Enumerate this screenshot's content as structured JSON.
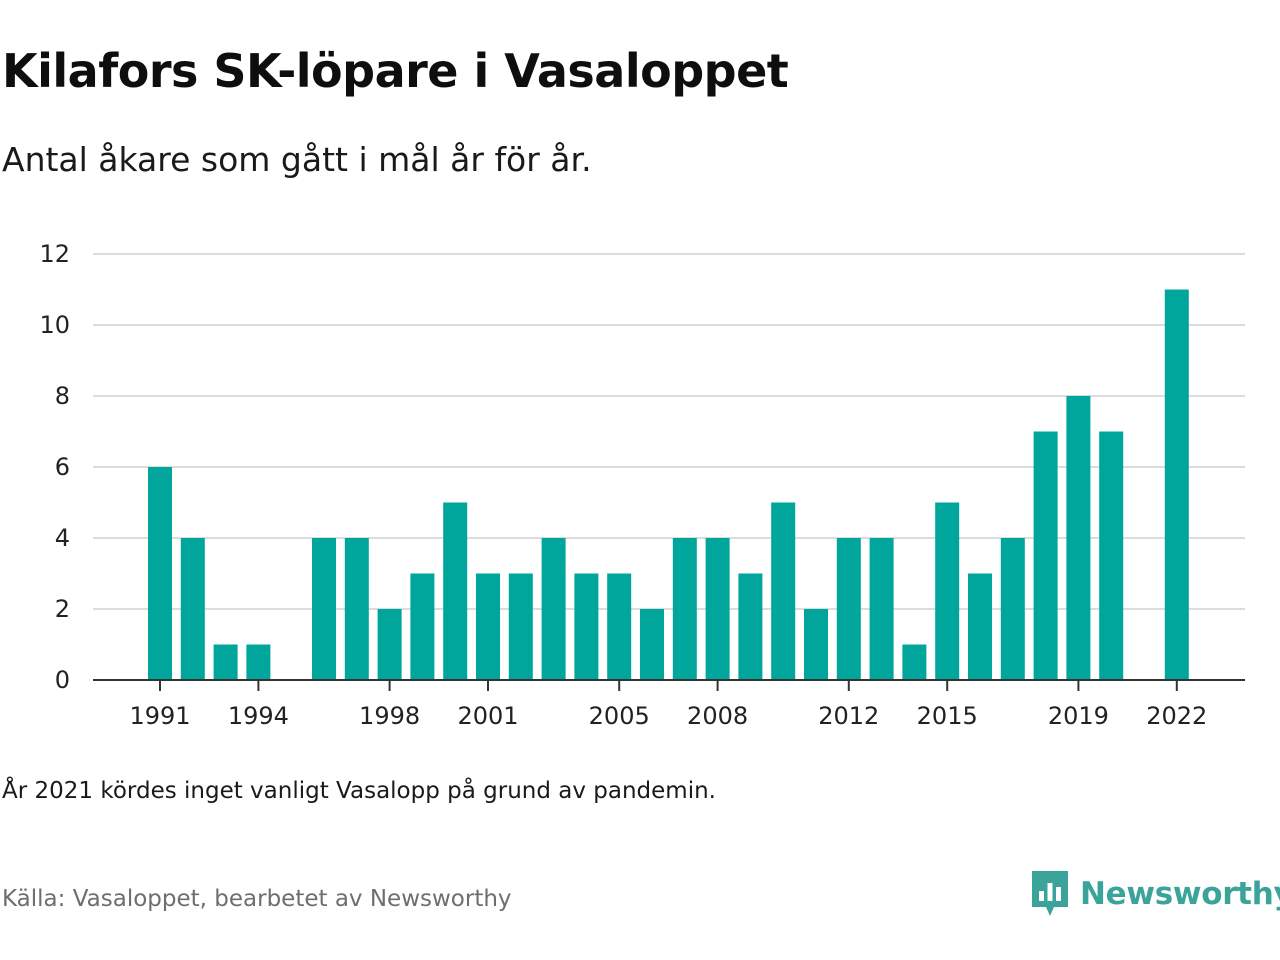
{
  "title": "Kilafors SK-löpare i Vasaloppet",
  "subtitle": "Antal åkare som gått i mål år för år.",
  "note": "År 2021 kördes inget vanligt Vasalopp på grund av pandemin.",
  "source": "Källa: Vasaloppet, bearbetet av Newsworthy",
  "brand": {
    "name": "Newsworthy",
    "icon": "newsworthy-logo-icon",
    "color": "#3aa39a"
  },
  "colors": {
    "bar": "#00a69c",
    "grid": "#dcdcdc",
    "axis": "#333333",
    "tick_text": "#222222"
  },
  "chart_data": {
    "type": "bar",
    "categories": [
      1991,
      1992,
      1993,
      1994,
      1995,
      1996,
      1997,
      1998,
      1999,
      2000,
      2001,
      2002,
      2003,
      2004,
      2005,
      2006,
      2007,
      2008,
      2009,
      2010,
      2011,
      2012,
      2013,
      2014,
      2015,
      2016,
      2017,
      2018,
      2019,
      2020,
      2021,
      2022
    ],
    "values": [
      6,
      4,
      1,
      1,
      null,
      4,
      4,
      2,
      3,
      5,
      3,
      3,
      4,
      3,
      3,
      2,
      4,
      4,
      3,
      5,
      2,
      4,
      4,
      1,
      5,
      3,
      4,
      7,
      8,
      7,
      null,
      11
    ],
    "x_tick_labels": [
      "1991",
      "1994",
      "1998",
      "2001",
      "2005",
      "2008",
      "2012",
      "2015",
      "2019",
      "2022"
    ],
    "y_ticks": [
      0,
      2,
      4,
      6,
      8,
      10,
      12
    ],
    "ylim": [
      0,
      12
    ],
    "grid": true,
    "legend": "none",
    "xlabel": "",
    "ylabel": ""
  }
}
